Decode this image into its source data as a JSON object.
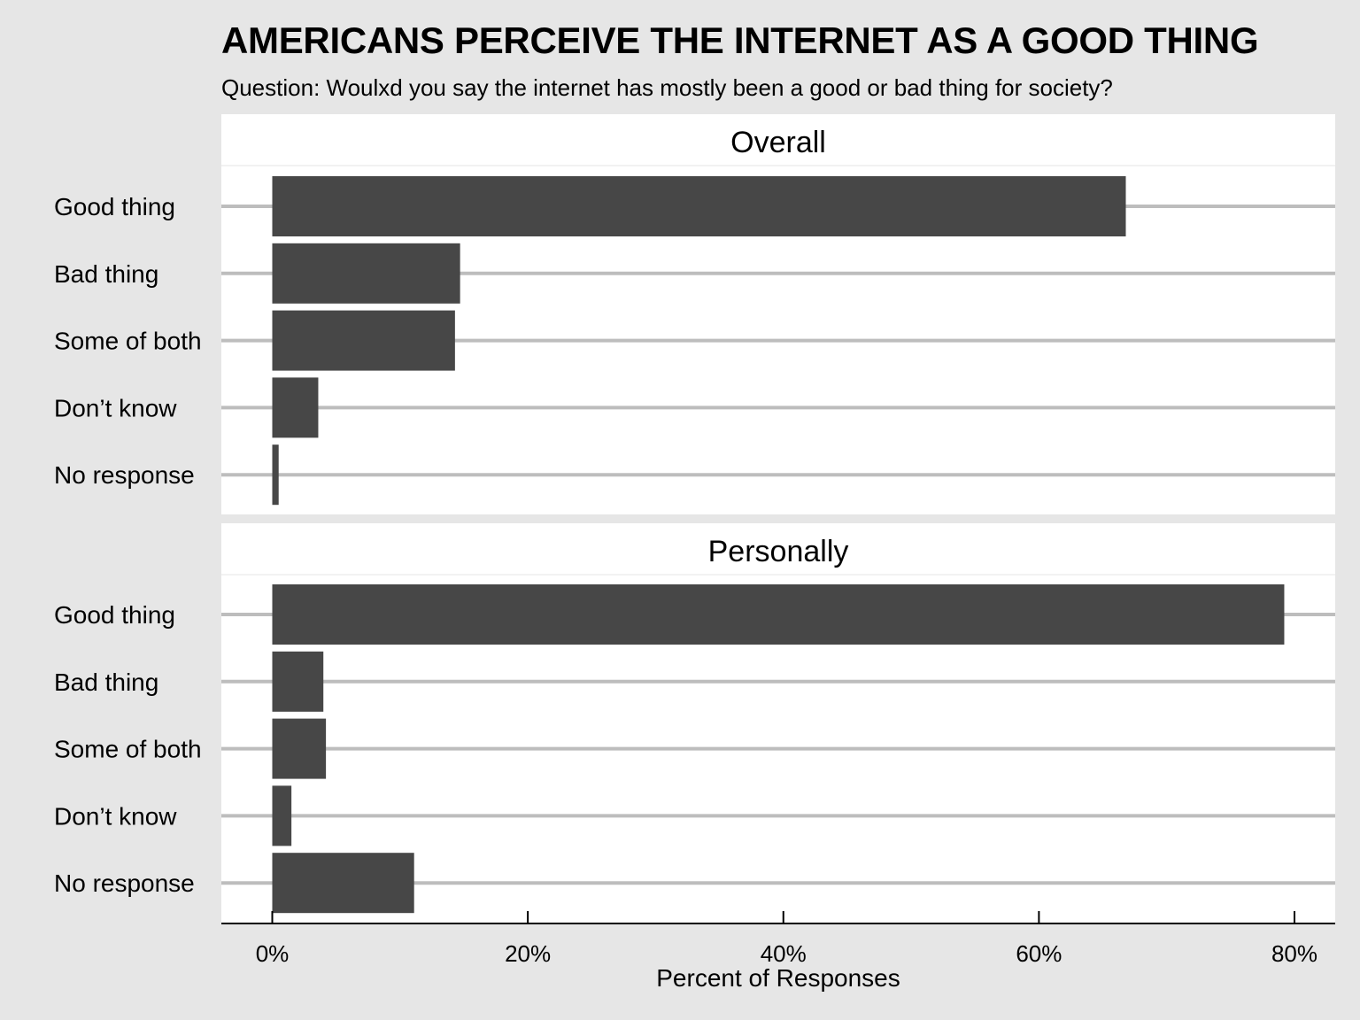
{
  "chart_data": {
    "type": "bar",
    "orientation": "horizontal",
    "title": "AMERICANS PERCEIVE THE INTERNET AS A GOOD THING",
    "subtitle": "Question: Woulxd you say the internet has mostly been a good or bad thing for society?",
    "xlabel": "Percent of Responses",
    "ylabel": "",
    "xlim": [
      -4,
      83
    ],
    "xticks": [
      0,
      20,
      40,
      60,
      80
    ],
    "xtick_labels": [
      "0%",
      "20%",
      "40%",
      "60%",
      "80%"
    ],
    "categories": [
      "Good thing",
      "Bad thing",
      "Some of both",
      "Don’t know",
      "No response"
    ],
    "grid": "horizontal lines at categories",
    "colors": {
      "background": "#e6e6e6",
      "panel": "#ffffff",
      "bar": "#474747",
      "grid": "#bdbdbd"
    },
    "panels": [
      {
        "name": "Overall",
        "values": [
          66.8,
          14.7,
          14.3,
          3.6,
          0.5
        ]
      },
      {
        "name": "Personally",
        "values": [
          79.2,
          4.0,
          4.2,
          1.5,
          11.1
        ]
      }
    ]
  }
}
